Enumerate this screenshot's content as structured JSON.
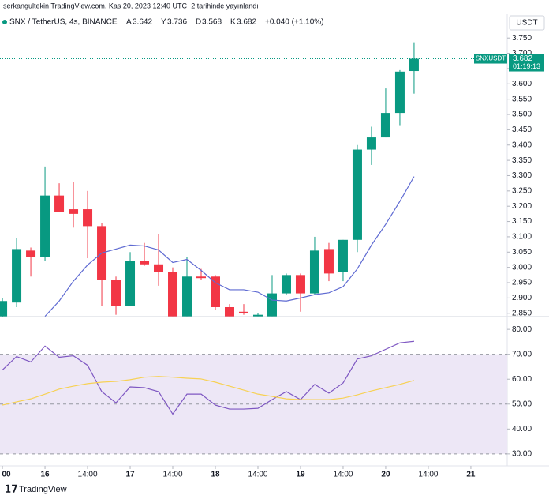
{
  "header": {
    "publisher": "serkangultekin TradingView.com, Kas 20, 2023 12:40 UTC+2 tarihinde yayınlandı",
    "symbol": "SNX / TetherUS, 4s, BINANCE",
    "ohlc": [
      {
        "label": "A",
        "value": 3.642
      },
      {
        "label": "Y",
        "value": 3.736
      },
      {
        "label": "D",
        "value": 3.568
      },
      {
        "label": "K",
        "value": 3.682
      }
    ],
    "change": "+0.040 (+1.10%)"
  },
  "currency": "USDT",
  "price_tag": {
    "symbol": "SNXUSDT",
    "value": 3.682,
    "countdown": "01:19:13"
  },
  "footer": "TradingView",
  "chart_data": [
    {
      "type": "candlestick",
      "x": [
        -1,
        0,
        1,
        2,
        3,
        4,
        5,
        6,
        7,
        8,
        9,
        10,
        11,
        12,
        13,
        14,
        15,
        16,
        17,
        18,
        19,
        20,
        21,
        22,
        23,
        24,
        25,
        26,
        27,
        28
      ],
      "open": [
        2.84,
        2.885,
        3.055,
        3.035,
        3.235,
        3.19,
        3.19,
        3.135,
        2.96,
        2.875,
        3.02,
        3.01,
        2.985,
        2.84,
        2.97,
        2.97,
        2.87,
        2.855,
        2.84,
        2.84,
        2.915,
        2.975,
        2.915,
        3.06,
        2.985,
        3.09,
        3.385,
        3.425,
        3.505,
        3.642
      ],
      "high": [
        2.9,
        3.095,
        3.065,
        3.33,
        3.275,
        3.28,
        3.25,
        3.145,
        2.97,
        3.05,
        3.08,
        3.11,
        3.0,
        3.035,
        2.995,
        2.975,
        2.88,
        2.88,
        2.85,
        2.975,
        2.98,
        2.98,
        3.1,
        3.08,
        3.09,
        3.4,
        3.46,
        3.585,
        3.645,
        3.736
      ],
      "low": [
        2.83,
        2.87,
        2.97,
        3.02,
        3.18,
        3.13,
        3.03,
        2.875,
        2.845,
        2.875,
        3.005,
        2.94,
        2.84,
        2.84,
        2.96,
        2.86,
        2.84,
        2.845,
        2.84,
        2.84,
        2.91,
        2.855,
        2.91,
        2.955,
        2.955,
        3.05,
        3.335,
        3.425,
        3.465,
        3.568
      ],
      "close": [
        2.89,
        3.06,
        3.035,
        3.235,
        3.18,
        3.175,
        3.135,
        2.96,
        2.875,
        3.02,
        3.01,
        2.985,
        2.84,
        2.97,
        2.965,
        2.87,
        2.84,
        2.85,
        2.845,
        2.915,
        2.975,
        2.915,
        3.055,
        2.98,
        3.09,
        3.385,
        3.425,
        3.505,
        3.64,
        3.682
      ],
      "up_color": "#089981",
      "down_color": "#f23645",
      "series": [
        {
          "color": "#5e6ad2",
          "values": [
            null,
            null,
            null,
            2.84,
            2.89,
            2.955,
            3.008,
            3.047,
            3.06,
            3.073,
            3.07,
            3.057,
            3.016,
            3.026,
            2.99,
            2.95,
            2.927,
            2.927,
            2.919,
            2.893,
            2.89,
            2.9,
            2.911,
            2.917,
            2.937,
            2.995,
            3.073,
            3.141,
            3.216,
            3.297
          ]
        }
      ],
      "xlim": [
        -1.17,
        34.56
      ],
      "xticks": [
        {
          "value": -1,
          "label": "00"
        },
        {
          "value": 2,
          "label": "16"
        },
        {
          "value": 5,
          "label": "14:00"
        },
        {
          "value": 8,
          "label": "17"
        },
        {
          "value": 11,
          "label": "14:00"
        },
        {
          "value": 14,
          "label": "18"
        },
        {
          "value": 17,
          "label": "14:00"
        },
        {
          "value": 20,
          "label": "19"
        },
        {
          "value": 23,
          "label": "14:00"
        },
        {
          "value": 26,
          "label": "20"
        },
        {
          "value": 29,
          "label": "14:00"
        },
        {
          "value": 32,
          "label": "21"
        }
      ],
      "ylim": [
        2.839,
        3.828
      ],
      "yticks": [
        {
          "value": 2.85,
          "label": "2.850"
        },
        {
          "value": 2.9,
          "label": "2.900"
        },
        {
          "value": 2.95,
          "label": "2.950"
        },
        {
          "value": 3.0,
          "label": "3.000"
        },
        {
          "value": 3.05,
          "label": "3.050"
        },
        {
          "value": 3.1,
          "label": "3.100"
        },
        {
          "value": 3.15,
          "label": "3.150"
        },
        {
          "value": 3.2,
          "label": "3.200"
        },
        {
          "value": 3.25,
          "label": "3.250"
        },
        {
          "value": 3.3,
          "label": "3.300"
        },
        {
          "value": 3.35,
          "label": "3.350"
        },
        {
          "value": 3.4,
          "label": "3.400"
        },
        {
          "value": 3.45,
          "label": "3.450"
        },
        {
          "value": 3.5,
          "label": "3.500"
        },
        {
          "value": 3.55,
          "label": "3.550"
        },
        {
          "value": 3.6,
          "label": "3.600"
        },
        {
          "value": 3.65,
          "label": "3.650"
        },
        {
          "value": 3.7,
          "label": "3.700"
        },
        {
          "value": 3.75,
          "label": "3.750"
        }
      ]
    },
    {
      "type": "line",
      "series": [
        {
          "color": "#7e57c2",
          "values": [
            63.7,
            69.1,
            66.9,
            73.3,
            68.8,
            69.4,
            65.6,
            55.0,
            50.5,
            56.9,
            56.6,
            55.0,
            46.0,
            54.0,
            54.0,
            49.6,
            48.0,
            48.0,
            48.3,
            51.8,
            55.0,
            51.8,
            57.9,
            54.4,
            58.5,
            68.1,
            69.4,
            72.0,
            74.6,
            75.2
          ]
        },
        {
          "color": "#f7d154",
          "values": [
            49.6,
            50.9,
            52.1,
            54.0,
            56.0,
            57.2,
            58.2,
            58.8,
            59.1,
            59.8,
            60.8,
            61.1,
            60.8,
            60.4,
            60.1,
            58.8,
            57.2,
            55.6,
            54.0,
            53.1,
            52.1,
            51.8,
            51.8,
            51.8,
            52.4,
            53.7,
            55.3,
            56.6,
            57.9,
            59.5
          ]
        }
      ],
      "levels": [
        70,
        50,
        30
      ],
      "band_color": "#ede7f6",
      "ylim": [
        25.2,
        84.8
      ],
      "yticks": [
        {
          "value": 30,
          "label": "30.00"
        },
        {
          "value": 40,
          "label": "40.00"
        },
        {
          "value": 50,
          "label": "50.00"
        },
        {
          "value": 60,
          "label": "60.00"
        },
        {
          "value": 70,
          "label": "70.00"
        },
        {
          "value": 80,
          "label": "80.00"
        }
      ]
    }
  ]
}
